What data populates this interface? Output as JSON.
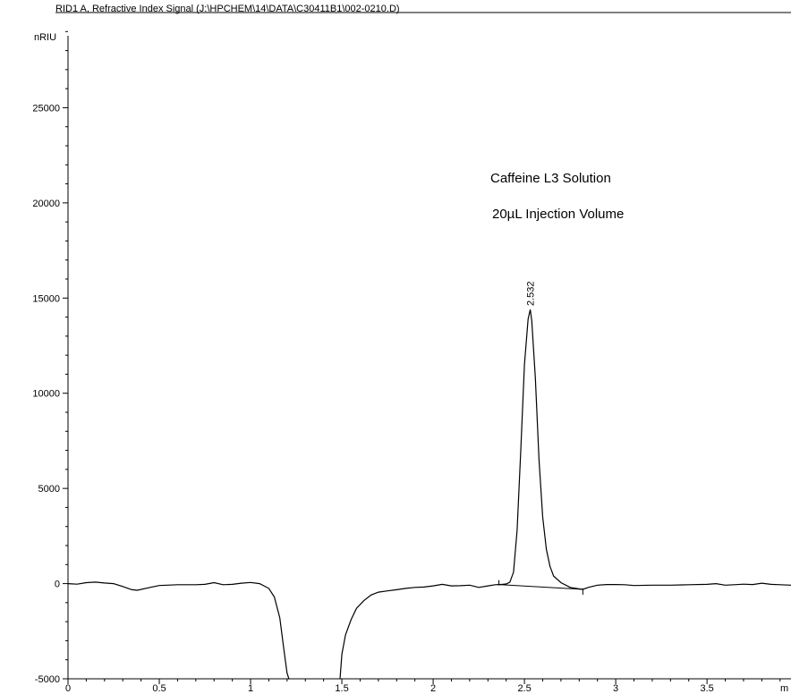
{
  "chart_data": {
    "type": "line",
    "title": "RID1 A, Refractive Index Signal (J:\\HPCHEM\\14\\DATA\\C30411B1\\002-0210.D)",
    "ylabel": "nRIU",
    "xlabel": "m",
    "xlim": [
      0,
      3.96
    ],
    "ylim": [
      -5000,
      30000
    ],
    "x_ticks": [
      "0",
      "0.5",
      "1",
      "1.5",
      "2",
      "2.5",
      "3",
      "3.5"
    ],
    "x_tick_values": [
      0,
      0.5,
      1,
      1.5,
      2,
      2.5,
      3,
      3.5
    ],
    "y_ticks": [
      "-5000",
      "0",
      "5000",
      "10000",
      "15000",
      "20000",
      "25000"
    ],
    "y_tick_values": [
      -5000,
      0,
      5000,
      10000,
      15000,
      20000,
      25000
    ],
    "annotations": [
      "Caffeine L3 Solution",
      "20µL Injection Volume"
    ],
    "peak_label": {
      "text": "2.532",
      "x": 2.532,
      "y": 14400
    },
    "baseline": [
      {
        "x": 2.36,
        "y": -50
      },
      {
        "x": 2.82,
        "y": -300
      }
    ],
    "series": [
      {
        "x": [
          0,
          0.05,
          0.1,
          0.15,
          0.2,
          0.25,
          0.3,
          0.35,
          0.38,
          0.45,
          0.5,
          0.6,
          0.7,
          0.75,
          0.8,
          0.85,
          0.9,
          0.95,
          1.0,
          1.05,
          1.1,
          1.13,
          1.16,
          1.18,
          1.2,
          1.21,
          1.212
        ],
        "y": [
          0,
          -30,
          50,
          80,
          30,
          0,
          -150,
          -320,
          -350,
          -200,
          -100,
          -60,
          -60,
          -40,
          50,
          -60,
          -40,
          20,
          60,
          0,
          -250,
          -700,
          -1800,
          -3300,
          -4700,
          -5000,
          -5000
        ]
      },
      {
        "x": [
          1.49,
          1.5,
          1.52,
          1.55,
          1.58,
          1.62,
          1.66,
          1.7,
          1.75,
          1.8,
          1.85,
          1.9,
          1.95,
          2.0,
          2.05,
          2.1,
          2.15,
          2.2,
          2.25,
          2.3,
          2.34,
          2.36,
          2.38,
          2.4,
          2.42,
          2.44,
          2.46,
          2.48,
          2.5,
          2.52,
          2.532,
          2.54,
          2.56,
          2.58,
          2.6,
          2.62,
          2.64,
          2.66,
          2.7,
          2.75,
          2.8,
          2.82,
          2.85,
          2.9,
          2.95,
          3.0,
          3.05,
          3.1,
          3.2,
          3.3,
          3.4,
          3.5,
          3.55,
          3.6,
          3.65,
          3.7,
          3.75,
          3.8,
          3.85,
          3.9,
          3.96
        ],
        "y": [
          -5000,
          -3700,
          -2700,
          -1900,
          -1300,
          -900,
          -600,
          -450,
          -380,
          -320,
          -250,
          -200,
          -180,
          -120,
          -40,
          -120,
          -110,
          -80,
          -200,
          -120,
          -60,
          -50,
          -40,
          -20,
          80,
          600,
          2800,
          7000,
          11500,
          13900,
          14400,
          13800,
          10800,
          6500,
          3500,
          1800,
          900,
          400,
          50,
          -200,
          -280,
          -300,
          -200,
          -80,
          -50,
          -50,
          -60,
          -100,
          -80,
          -80,
          -60,
          -40,
          0,
          -80,
          -60,
          -30,
          -50,
          20,
          -40,
          -60,
          -80
        ]
      }
    ]
  }
}
